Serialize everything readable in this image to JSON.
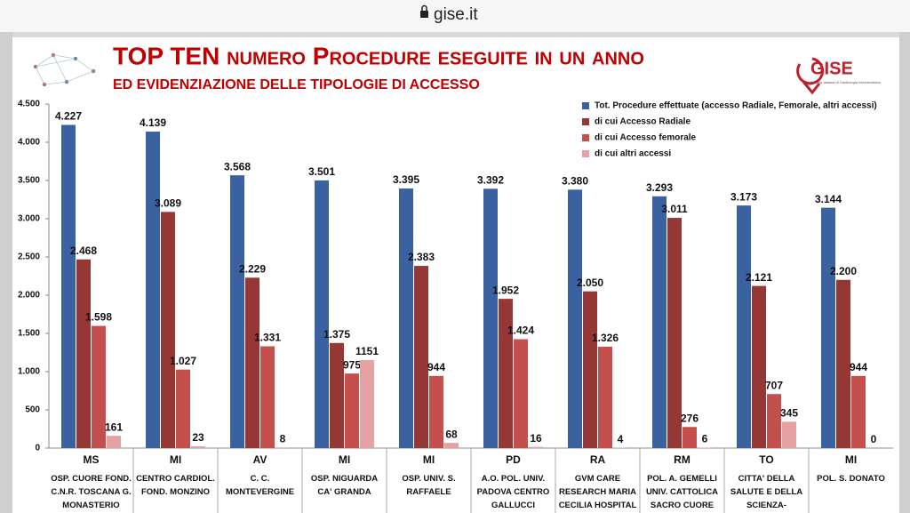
{
  "browser": {
    "url": "gise.it"
  },
  "logo": {
    "text": "GISE",
    "tagline": "Società Italiana di Cardiologia Interventistica"
  },
  "chart_data": {
    "type": "bar",
    "title": "TOP TEN numero Procedure eseguite in un anno",
    "subtitle": "ED EVIDENZIAZIONE DELLE TIPOLOGIE DI ACCESSO",
    "category_codes": [
      "MS",
      "MI",
      "AV",
      "MI",
      "MI",
      "PD",
      "RA",
      "RM",
      "TO",
      "MI"
    ],
    "categories": [
      "OSP. CUORE FOND. C.N.R. TOSCANA G. MONASTERIO",
      "CENTRO CARDIOL. FOND. MONZINO",
      "C. C. MONTEVERGINE",
      "OSP. NIGUARDA CA' GRANDA",
      "OSP. UNIV. S. RAFFAELE",
      "A.O. POL. UNIV. PADOVA CENTRO GALLUCCI",
      "GVM CARE RESEARCH MARIA CECILIA HOSPITAL",
      "POL. A. GEMELLI UNIV. CATTOLICA SACRO CUORE",
      "CITTA' DELLA SALUTE E DELLA SCIENZA-",
      "POL. S. DONATO"
    ],
    "series": [
      {
        "name": "Tot. Procedure effettuate (accesso Radiale, Femorale, altri accessi)",
        "color": "#3a62a0",
        "values": [
          4227,
          4139,
          3568,
          3501,
          3395,
          3392,
          3380,
          3293,
          3173,
          3144
        ],
        "value_labels": [
          "4.227",
          "4.139",
          "3.568",
          "3.501",
          "3.395",
          "3.392",
          "3.380",
          "3.293",
          "3.173",
          "3.144"
        ]
      },
      {
        "name": "di cui Accesso Radiale",
        "color": "#953735",
        "values": [
          2468,
          3089,
          2229,
          1375,
          2383,
          1952,
          2050,
          3011,
          2121,
          2200
        ],
        "value_labels": [
          "2.468",
          "3.089",
          "2.229",
          "1.375",
          "2.383",
          "1.952",
          "2.050",
          "3.011",
          "2.121",
          "2.200"
        ]
      },
      {
        "name": "di cui Accesso femorale",
        "color": "#c4504d",
        "values": [
          1598,
          1027,
          1331,
          975,
          944,
          1424,
          1326,
          276,
          707,
          944
        ],
        "value_labels": [
          "1.598",
          "1.027",
          "1.331",
          "975",
          "944",
          "1.424",
          "1.326",
          "276",
          "707",
          "944"
        ]
      },
      {
        "name": "di cui altri accessi",
        "color": "#e4a3a2",
        "values": [
          161,
          23,
          8,
          1151,
          68,
          16,
          4,
          6,
          345,
          0
        ],
        "value_labels": [
          "161",
          "23",
          "8",
          "1151",
          "68",
          "16",
          "4",
          "6",
          "345",
          "0"
        ]
      }
    ],
    "ylim": [
      0,
      4500
    ],
    "yticks": [
      0,
      500,
      {
        "value": 1000,
        "label": "1.000"
      },
      {
        "value": 1500,
        "label": "1.500"
      },
      {
        "value": 2000,
        "label": "2.000"
      },
      {
        "value": 2500,
        "label": "2.500"
      },
      {
        "value": 3000,
        "label": "3.000"
      },
      {
        "value": 3500,
        "label": "3.500"
      },
      {
        "value": 4000,
        "label": "4.000"
      },
      {
        "value": 4500,
        "label": "4.500"
      }
    ],
    "legend": "top-right"
  }
}
